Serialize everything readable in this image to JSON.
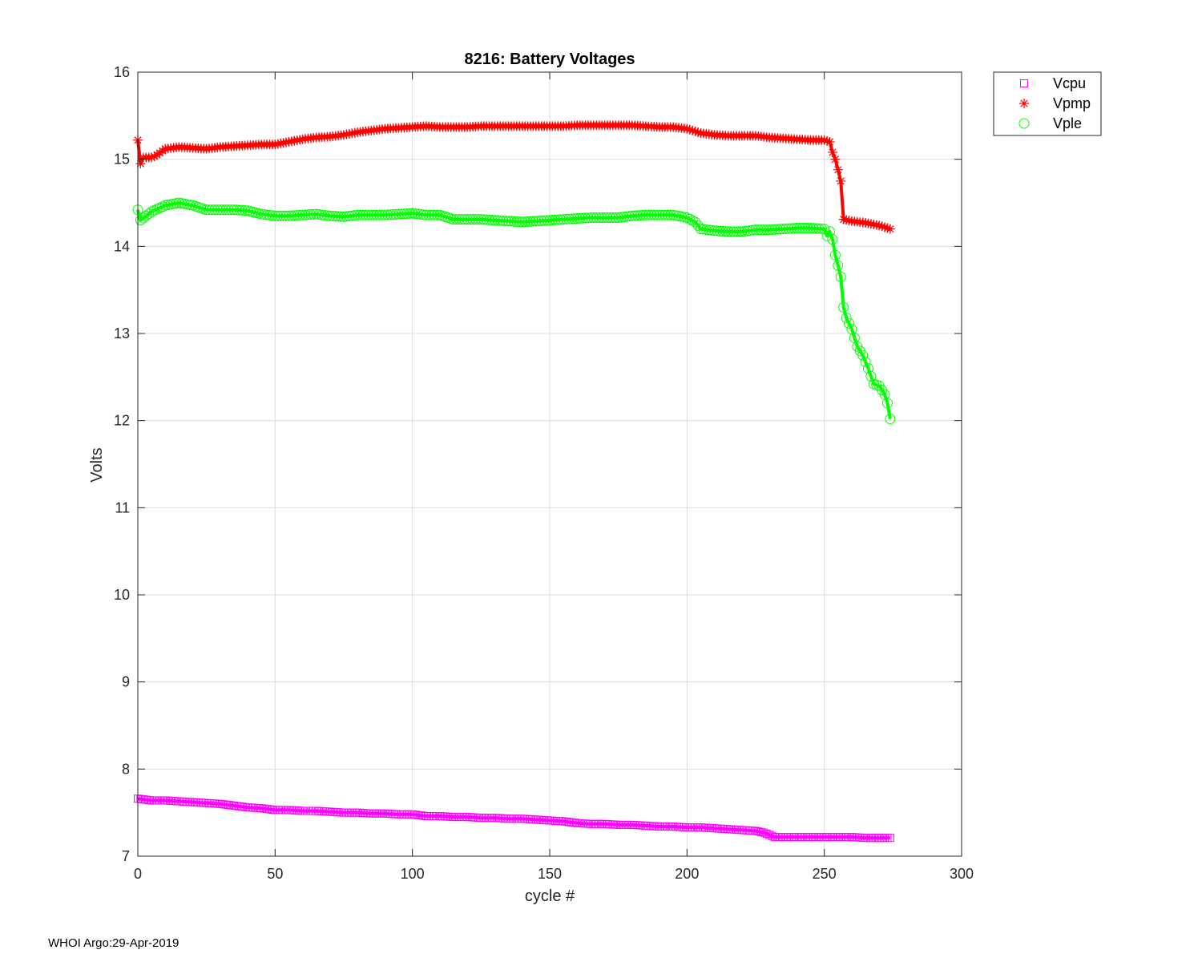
{
  "footer": "WHOI Argo:29-Apr-2019",
  "chart_data": {
    "type": "line",
    "title": "8216: Battery Voltages",
    "xlabel": "cycle #",
    "ylabel": "Volts",
    "xlim": [
      0,
      300
    ],
    "ylim": [
      7,
      16
    ],
    "xticks": [
      0,
      50,
      100,
      150,
      200,
      250,
      300
    ],
    "yticks": [
      7,
      8,
      9,
      10,
      11,
      12,
      13,
      14,
      15,
      16
    ],
    "grid": true,
    "legend_position": "outside-top-right",
    "series": [
      {
        "name": "Vcpu",
        "color": "#ff00ff",
        "marker": "square",
        "points": [
          [
            0,
            7.66
          ],
          [
            5,
            7.64
          ],
          [
            10,
            7.64
          ],
          [
            15,
            7.63
          ],
          [
            20,
            7.62
          ],
          [
            25,
            7.61
          ],
          [
            30,
            7.6
          ],
          [
            35,
            7.58
          ],
          [
            40,
            7.56
          ],
          [
            45,
            7.55
          ],
          [
            50,
            7.53
          ],
          [
            55,
            7.53
          ],
          [
            60,
            7.52
          ],
          [
            65,
            7.52
          ],
          [
            70,
            7.51
          ],
          [
            75,
            7.5
          ],
          [
            80,
            7.5
          ],
          [
            85,
            7.49
          ],
          [
            90,
            7.49
          ],
          [
            95,
            7.48
          ],
          [
            100,
            7.48
          ],
          [
            105,
            7.46
          ],
          [
            110,
            7.46
          ],
          [
            115,
            7.45
          ],
          [
            120,
            7.45
          ],
          [
            125,
            7.44
          ],
          [
            130,
            7.44
          ],
          [
            135,
            7.43
          ],
          [
            140,
            7.43
          ],
          [
            145,
            7.42
          ],
          [
            150,
            7.41
          ],
          [
            155,
            7.4
          ],
          [
            160,
            7.38
          ],
          [
            165,
            7.37
          ],
          [
            170,
            7.37
          ],
          [
            175,
            7.36
          ],
          [
            180,
            7.36
          ],
          [
            185,
            7.35
          ],
          [
            190,
            7.34
          ],
          [
            195,
            7.34
          ],
          [
            200,
            7.33
          ],
          [
            205,
            7.33
          ],
          [
            210,
            7.32
          ],
          [
            215,
            7.31
          ],
          [
            220,
            7.3
          ],
          [
            225,
            7.29
          ],
          [
            228,
            7.27
          ],
          [
            232,
            7.22
          ],
          [
            235,
            7.22
          ],
          [
            240,
            7.22
          ],
          [
            245,
            7.22
          ],
          [
            250,
            7.22
          ],
          [
            255,
            7.22
          ],
          [
            260,
            7.22
          ],
          [
            265,
            7.21
          ],
          [
            270,
            7.21
          ],
          [
            274,
            7.21
          ]
        ]
      },
      {
        "name": "Vpmp",
        "color": "#ff0000",
        "marker": "asterisk",
        "points": [
          [
            0,
            15.22
          ],
          [
            1,
            14.95
          ],
          [
            2,
            15.02
          ],
          [
            5,
            15.02
          ],
          [
            7,
            15.05
          ],
          [
            10,
            15.12
          ],
          [
            15,
            15.14
          ],
          [
            20,
            15.13
          ],
          [
            25,
            15.12
          ],
          [
            30,
            15.14
          ],
          [
            35,
            15.15
          ],
          [
            40,
            15.16
          ],
          [
            45,
            15.17
          ],
          [
            50,
            15.17
          ],
          [
            55,
            15.2
          ],
          [
            60,
            15.23
          ],
          [
            65,
            15.25
          ],
          [
            70,
            15.26
          ],
          [
            75,
            15.28
          ],
          [
            80,
            15.31
          ],
          [
            85,
            15.33
          ],
          [
            90,
            15.35
          ],
          [
            95,
            15.36
          ],
          [
            100,
            15.37
          ],
          [
            105,
            15.38
          ],
          [
            110,
            15.37
          ],
          [
            115,
            15.37
          ],
          [
            120,
            15.37
          ],
          [
            125,
            15.38
          ],
          [
            130,
            15.38
          ],
          [
            135,
            15.38
          ],
          [
            140,
            15.38
          ],
          [
            145,
            15.38
          ],
          [
            150,
            15.38
          ],
          [
            155,
            15.38
          ],
          [
            160,
            15.39
          ],
          [
            165,
            15.39
          ],
          [
            170,
            15.39
          ],
          [
            175,
            15.39
          ],
          [
            180,
            15.39
          ],
          [
            185,
            15.38
          ],
          [
            190,
            15.37
          ],
          [
            195,
            15.37
          ],
          [
            200,
            15.35
          ],
          [
            205,
            15.3
          ],
          [
            210,
            15.28
          ],
          [
            215,
            15.27
          ],
          [
            220,
            15.27
          ],
          [
            225,
            15.27
          ],
          [
            230,
            15.25
          ],
          [
            235,
            15.24
          ],
          [
            240,
            15.23
          ],
          [
            245,
            15.22
          ],
          [
            250,
            15.22
          ],
          [
            252,
            15.2
          ],
          [
            253,
            15.08
          ],
          [
            254,
            15.0
          ],
          [
            255,
            14.88
          ],
          [
            256,
            14.75
          ],
          [
            257,
            14.31
          ],
          [
            260,
            14.29
          ],
          [
            265,
            14.27
          ],
          [
            270,
            14.24
          ],
          [
            274,
            14.2
          ]
        ]
      },
      {
        "name": "Vple",
        "color": "#00ff00",
        "marker": "circle",
        "points": [
          [
            0,
            14.42
          ],
          [
            1,
            14.3
          ],
          [
            3,
            14.35
          ],
          [
            5,
            14.4
          ],
          [
            10,
            14.47
          ],
          [
            15,
            14.5
          ],
          [
            20,
            14.47
          ],
          [
            25,
            14.42
          ],
          [
            30,
            14.42
          ],
          [
            35,
            14.42
          ],
          [
            40,
            14.41
          ],
          [
            45,
            14.37
          ],
          [
            50,
            14.35
          ],
          [
            55,
            14.35
          ],
          [
            60,
            14.36
          ],
          [
            65,
            14.37
          ],
          [
            70,
            14.35
          ],
          [
            75,
            14.34
          ],
          [
            80,
            14.36
          ],
          [
            85,
            14.36
          ],
          [
            90,
            14.36
          ],
          [
            95,
            14.37
          ],
          [
            100,
            14.38
          ],
          [
            105,
            14.36
          ],
          [
            110,
            14.36
          ],
          [
            115,
            14.31
          ],
          [
            120,
            14.31
          ],
          [
            125,
            14.31
          ],
          [
            130,
            14.3
          ],
          [
            135,
            14.29
          ],
          [
            140,
            14.28
          ],
          [
            145,
            14.29
          ],
          [
            150,
            14.3
          ],
          [
            155,
            14.31
          ],
          [
            160,
            14.32
          ],
          [
            165,
            14.33
          ],
          [
            170,
            14.33
          ],
          [
            175,
            14.33
          ],
          [
            180,
            14.35
          ],
          [
            185,
            14.36
          ],
          [
            190,
            14.36
          ],
          [
            195,
            14.36
          ],
          [
            200,
            14.33
          ],
          [
            203,
            14.28
          ],
          [
            205,
            14.2
          ],
          [
            210,
            14.18
          ],
          [
            215,
            14.17
          ],
          [
            220,
            14.17
          ],
          [
            225,
            14.19
          ],
          [
            230,
            14.19
          ],
          [
            235,
            14.2
          ],
          [
            240,
            14.21
          ],
          [
            245,
            14.21
          ],
          [
            250,
            14.2
          ],
          [
            251,
            14.12
          ],
          [
            252,
            14.17
          ],
          [
            253,
            14.08
          ],
          [
            254,
            13.9
          ],
          [
            255,
            13.78
          ],
          [
            256,
            13.65
          ],
          [
            257,
            13.3
          ],
          [
            258,
            13.18
          ],
          [
            260,
            13.05
          ],
          [
            262,
            12.85
          ],
          [
            264,
            12.75
          ],
          [
            266,
            12.6
          ],
          [
            268,
            12.42
          ],
          [
            270,
            12.4
          ],
          [
            272,
            12.3
          ],
          [
            273,
            12.2
          ],
          [
            274,
            12.02
          ]
        ]
      }
    ]
  }
}
